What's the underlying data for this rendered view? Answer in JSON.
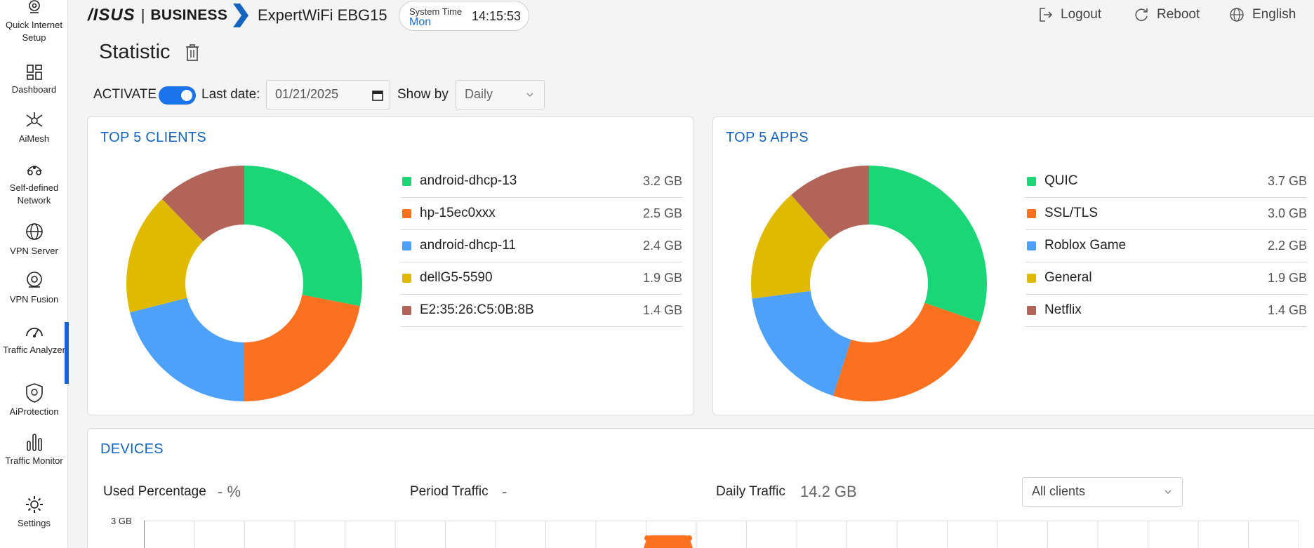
{
  "sidebar": {
    "items": [
      {
        "label": "Quick Internet Setup",
        "icon": "quick-setup-icon"
      },
      {
        "label": "Dashboard",
        "icon": "dashboard-icon"
      },
      {
        "label": "AiMesh",
        "icon": "aimesh-icon"
      },
      {
        "label": "Self-defined Network",
        "icon": "self-defined-network-icon"
      },
      {
        "label": "VPN Server",
        "icon": "vpn-server-icon"
      },
      {
        "label": "VPN Fusion",
        "icon": "vpn-fusion-icon"
      },
      {
        "label": "Traffic Analyzer",
        "icon": "traffic-analyzer-icon",
        "active": true
      },
      {
        "label": "AiProtection",
        "icon": "aiprotection-icon"
      },
      {
        "label": "Traffic Monitor",
        "icon": "traffic-monitor-icon"
      },
      {
        "label": "Settings",
        "icon": "settings-icon"
      }
    ],
    "accent": "#1565d8"
  },
  "header": {
    "brand_asus": "/ISUS",
    "brand_sep": "|",
    "brand_business": "BUSINESS",
    "model": "ExpertWiFi EBG15",
    "system_time_label": "System Time",
    "system_time_day": "Mon",
    "system_time_clock": "14:15:53",
    "logout": "Logout",
    "reboot": "Reboot",
    "language": "English"
  },
  "page": {
    "title": "Statistic"
  },
  "controls": {
    "activate_label": "ACTIVATE",
    "activate_on": true,
    "last_date_label": "Last date:",
    "last_date_value": "01/21/2025",
    "show_by_label": "Show by",
    "show_by_value": "Daily"
  },
  "top_clients": {
    "title": "TOP 5 CLIENTS",
    "items": [
      {
        "name": "android-dhcp-13",
        "value": "3.2 GB",
        "amount": 3.2,
        "color": "#1bd676"
      },
      {
        "name": "hp-15ec0xxx",
        "value": "2.5 GB",
        "amount": 2.5,
        "color": "#fb7120"
      },
      {
        "name": "android-dhcp-11",
        "value": "2.4 GB",
        "amount": 2.4,
        "color": "#4da1f8"
      },
      {
        "name": "dellG5-5590",
        "value": "1.9 GB",
        "amount": 1.9,
        "color": "#dfba00"
      },
      {
        "name": "E2:35:26:C5:0B:8B",
        "value": "1.4 GB",
        "amount": 1.4,
        "color": "#b26458"
      }
    ]
  },
  "top_apps": {
    "title": "TOP 5 APPS",
    "items": [
      {
        "name": "QUIC",
        "value": "3.7 GB",
        "amount": 3.7,
        "color": "#1bd676"
      },
      {
        "name": "SSL/TLS",
        "value": "3.0 GB",
        "amount": 3.0,
        "color": "#fb7120"
      },
      {
        "name": "Roblox Game",
        "value": "2.2 GB",
        "amount": 2.2,
        "color": "#4da1f8"
      },
      {
        "name": "General",
        "value": "1.9 GB",
        "amount": 1.9,
        "color": "#dfba00"
      },
      {
        "name": "Netflix",
        "value": "1.4 GB",
        "amount": 1.4,
        "color": "#b26458"
      }
    ]
  },
  "devices": {
    "title": "DEVICES",
    "used_percentage_label": "Used Percentage",
    "used_percentage_value": "- %",
    "period_traffic_label": "Period Traffic",
    "period_traffic_value": "-",
    "daily_traffic_label": "Daily Traffic",
    "daily_traffic_value": "14.2 GB",
    "client_filter": "All clients",
    "y_axis_top": "3 GB"
  }
}
